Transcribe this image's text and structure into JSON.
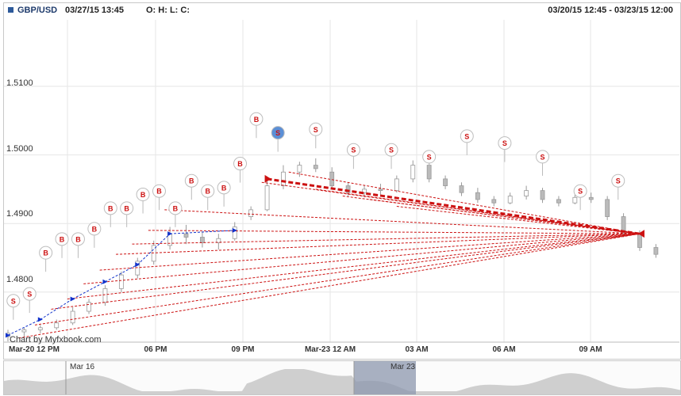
{
  "header": {
    "symbol": "GBP/USD",
    "datetime": "03/27/15 13:45",
    "ohlc": "O: H: L: C:",
    "range": "03/20/15 12:45 - 03/23/15 12:00"
  },
  "colors": {
    "buy": "#cc1111",
    "sell": "#cc1111",
    "blue": "#1133cc",
    "candle": "#bbbbbb",
    "grid": "#e6e6e6",
    "nav_fill": "#cfcfcf",
    "nav_selected": "#8c97ad"
  },
  "y_axis": {
    "labels": [
      "1.5100",
      "1.5000",
      "1.4900",
      "1.4800"
    ],
    "values": [
      1.51,
      1.5,
      1.49,
      1.48
    ],
    "min": 1.4727,
    "max": 1.5197
  },
  "x_axis": {
    "labels": [
      "Mar-20 12 PM",
      "06 PM",
      "09 PM",
      "Mar-23 12 AM",
      "03 AM",
      "06 AM",
      "09 AM"
    ]
  },
  "credit": "Chart by Myfxbook.com",
  "navigator": {
    "labels": [
      "Mar 16",
      "Mar 23"
    ]
  },
  "chart_data": {
    "type": "candlestick",
    "title": "GBP/USD",
    "candles": [
      [
        0.0,
        1.4735,
        1.4745,
        1.4728,
        1.474
      ],
      [
        0.03,
        1.4742,
        1.4748,
        1.4735,
        1.4745
      ],
      [
        0.06,
        1.4745,
        1.4752,
        1.474,
        1.4748
      ],
      [
        0.09,
        1.4748,
        1.476,
        1.4745,
        1.4755
      ],
      [
        0.12,
        1.4755,
        1.4778,
        1.4752,
        1.4772
      ],
      [
        0.15,
        1.4772,
        1.479,
        1.4768,
        1.4785
      ],
      [
        0.18,
        1.4785,
        1.481,
        1.478,
        1.4805
      ],
      [
        0.21,
        1.4805,
        1.483,
        1.48,
        1.4825
      ],
      [
        0.24,
        1.4825,
        1.485,
        1.482,
        1.4845
      ],
      [
        0.27,
        1.4845,
        1.4875,
        1.484,
        1.4868
      ],
      [
        0.3,
        1.4868,
        1.4895,
        1.4862,
        1.4885
      ],
      [
        0.33,
        1.4885,
        1.4898,
        1.487,
        1.488
      ],
      [
        0.36,
        1.488,
        1.4888,
        1.4865,
        1.4872
      ],
      [
        0.39,
        1.4872,
        1.4885,
        1.4862,
        1.4878
      ],
      [
        0.42,
        1.4878,
        1.4902,
        1.4875,
        1.4895
      ],
      [
        0.45,
        1.491,
        1.4925,
        1.4905,
        1.492
      ],
      [
        0.48,
        1.492,
        1.4965,
        1.4918,
        1.4955
      ],
      [
        0.51,
        1.4955,
        1.4985,
        1.495,
        1.4975
      ],
      [
        0.54,
        1.4975,
        1.499,
        1.4968,
        1.4985
      ],
      [
        0.57,
        1.4985,
        1.4995,
        1.4975,
        1.498
      ],
      [
        0.6,
        1.4975,
        1.4982,
        1.495,
        1.4955
      ],
      [
        0.63,
        1.4955,
        1.496,
        1.494,
        1.4945
      ],
      [
        0.66,
        1.4945,
        1.4955,
        1.4938,
        1.495
      ],
      [
        0.69,
        1.495,
        1.4958,
        1.4942,
        1.4948
      ],
      [
        0.72,
        1.4948,
        1.497,
        1.4945,
        1.4965
      ],
      [
        0.75,
        1.4965,
        1.4992,
        1.496,
        1.4985
      ],
      [
        0.78,
        1.4985,
        1.499,
        1.496,
        1.4965
      ],
      [
        0.81,
        1.4965,
        1.497,
        1.495,
        1.4955
      ],
      [
        0.84,
        1.4955,
        1.496,
        1.494,
        1.4945
      ],
      [
        0.87,
        1.4945,
        1.4952,
        1.493,
        1.4935
      ],
      [
        0.9,
        1.4935,
        1.494,
        1.4925,
        1.493
      ],
      [
        0.93,
        1.493,
        1.4945,
        1.4928,
        1.494
      ],
      [
        0.96,
        1.494,
        1.4955,
        1.4935,
        1.4948
      ],
      [
        0.99,
        1.4948,
        1.4952,
        1.493,
        1.4935
      ],
      [
        1.02,
        1.4935,
        1.494,
        1.4925,
        1.493
      ],
      [
        1.05,
        1.493,
        1.4942,
        1.4928,
        1.4938
      ],
      [
        1.08,
        1.4938,
        1.4945,
        1.493,
        1.4935
      ],
      [
        1.11,
        1.4935,
        1.494,
        1.4905,
        1.491
      ],
      [
        1.14,
        1.491,
        1.4915,
        1.488,
        1.4885
      ],
      [
        1.17,
        1.4885,
        1.489,
        1.486,
        1.4865
      ],
      [
        1.2,
        1.4865,
        1.487,
        1.485,
        1.4855
      ]
    ],
    "trades": [
      {
        "type": "buy",
        "open": 1.4733,
        "close": 1.4885
      },
      {
        "type": "buy",
        "open": 1.4752,
        "close": 1.4885
      },
      {
        "type": "buy",
        "open": 1.4775,
        "close": 1.4885
      },
      {
        "type": "buy",
        "open": 1.479,
        "close": 1.4885
      },
      {
        "type": "buy",
        "open": 1.4812,
        "close": 1.4885
      },
      {
        "type": "buy",
        "open": 1.4832,
        "close": 1.4885
      },
      {
        "type": "buy",
        "open": 1.4855,
        "close": 1.4885
      },
      {
        "type": "buy",
        "open": 1.487,
        "close": 1.4885
      },
      {
        "type": "buy",
        "open": 1.489,
        "close": 1.4885
      },
      {
        "type": "buy",
        "open": 1.492,
        "close": 1.4885
      },
      {
        "type": "sell",
        "open": 1.496,
        "close": 1.4885
      },
      {
        "type": "sell",
        "open": 1.4975,
        "close": 1.4885
      },
      {
        "type": "sell",
        "open": 1.495,
        "close": 1.4885
      },
      {
        "type": "sell",
        "open": 1.494,
        "close": 1.4885
      },
      {
        "type": "sell",
        "open": 1.4935,
        "close": 1.4885
      },
      {
        "type": "sell",
        "open": 1.4925,
        "close": 1.4885
      }
    ],
    "markers": [
      {
        "label": "S",
        "price": 1.4755
      },
      {
        "label": "S",
        "price": 1.4765
      },
      {
        "label": "B",
        "price": 1.4825
      },
      {
        "label": "B",
        "price": 1.4845
      },
      {
        "label": "B",
        "price": 1.4845
      },
      {
        "label": "B",
        "price": 1.486
      },
      {
        "label": "B",
        "price": 1.489
      },
      {
        "label": "B",
        "price": 1.489
      },
      {
        "label": "B",
        "price": 1.491
      },
      {
        "label": "B",
        "price": 1.4915
      },
      {
        "label": "B",
        "price": 1.489
      },
      {
        "label": "B",
        "price": 1.493
      },
      {
        "label": "B",
        "price": 1.4915
      },
      {
        "label": "B",
        "price": 1.492
      },
      {
        "label": "B",
        "price": 1.4955
      },
      {
        "label": "B",
        "price": 1.502
      },
      {
        "label": "S",
        "price": 1.5
      },
      {
        "label": "S",
        "price": 1.5005
      },
      {
        "label": "S",
        "price": 1.4975
      },
      {
        "label": "S",
        "price": 1.4975
      },
      {
        "label": "S",
        "price": 1.4965
      },
      {
        "label": "S",
        "price": 1.4995
      },
      {
        "label": "S",
        "price": 1.4985
      },
      {
        "label": "S",
        "price": 1.4965
      },
      {
        "label": "S",
        "price": 1.4915
      },
      {
        "label": "S",
        "price": 1.493
      }
    ]
  }
}
